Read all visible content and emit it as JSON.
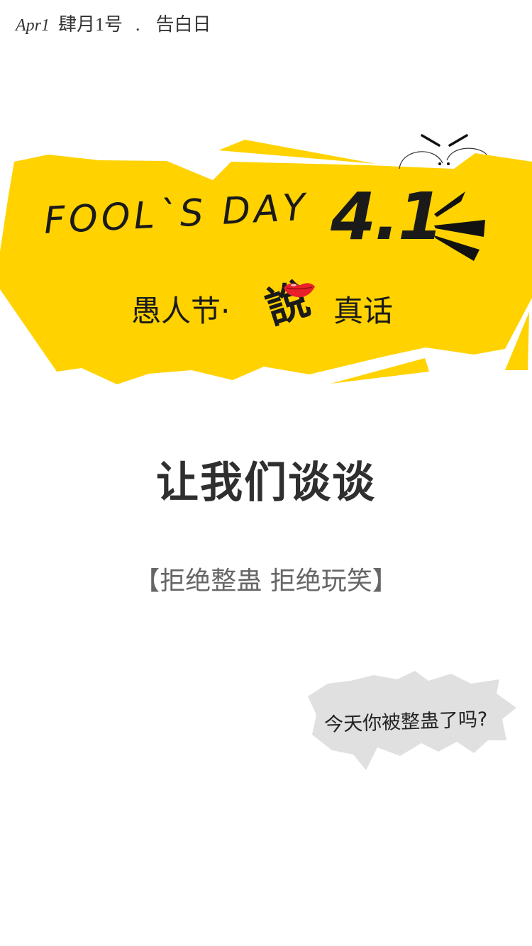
{
  "header": {
    "month_abbr": "Apr1",
    "date_text": "肆月1号",
    "separator": ".",
    "day_name": "告白日"
  },
  "banner": {
    "title_en": "FOOL`S DAY",
    "date": "4.1",
    "subtitle_left": "愚人节·",
    "subtitle_keyword": "說",
    "subtitle_right": "真话",
    "accent_color": "#FFD200",
    "lips_color": "#E8202A"
  },
  "main": {
    "headline": "让我们谈谈",
    "tagline": "【拒绝整蛊 拒绝玩笑】"
  },
  "bubble": {
    "text": "今天你被整蛊了吗?",
    "fill_color": "#E0E0E0"
  }
}
